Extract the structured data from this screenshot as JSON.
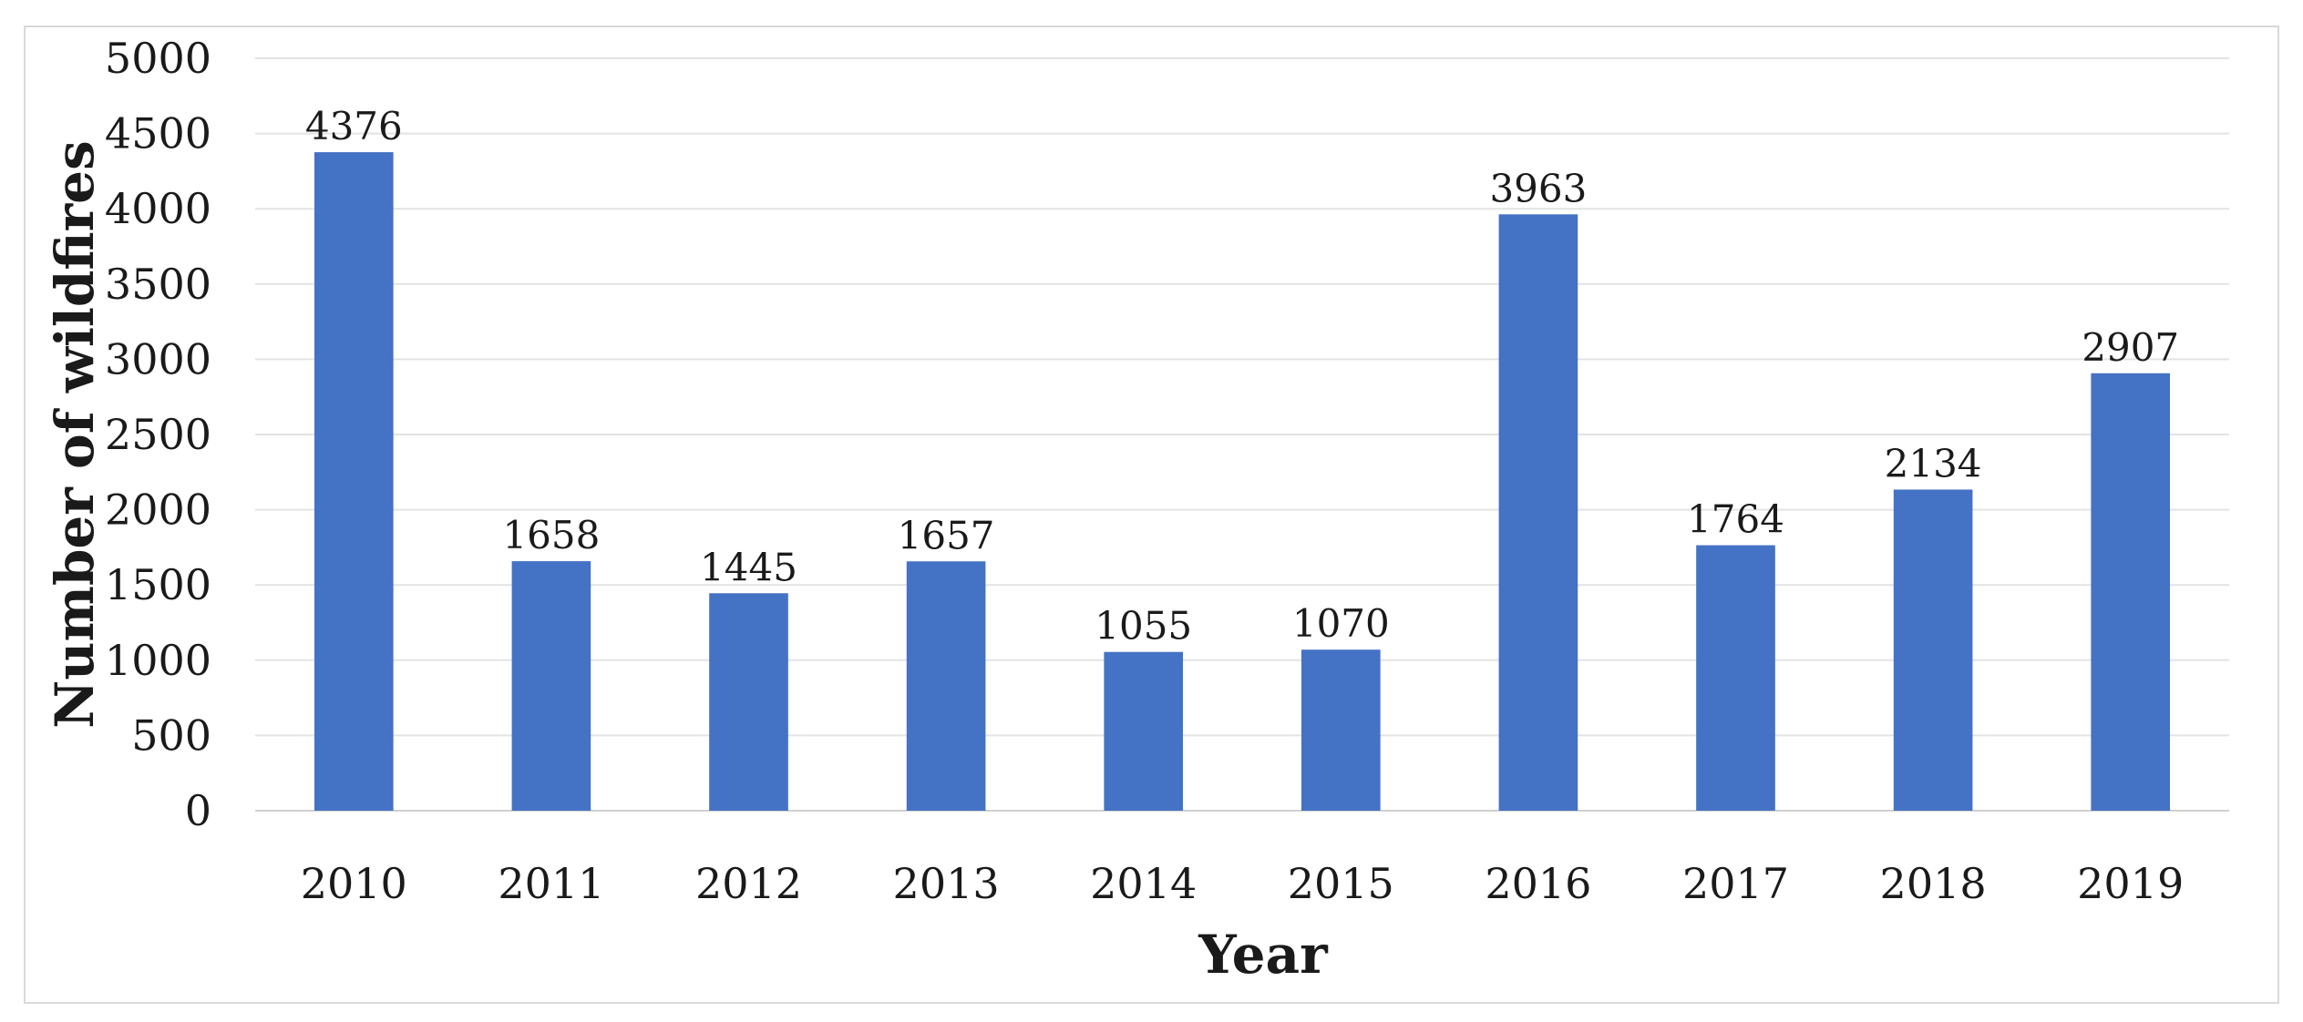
{
  "chart_data": {
    "type": "bar",
    "title": "",
    "xlabel": "Year",
    "ylabel": "Number of wildfires",
    "categories": [
      "2010",
      "2011",
      "2012",
      "2013",
      "2014",
      "2015",
      "2016",
      "2017",
      "2018",
      "2019"
    ],
    "values": [
      4376,
      1658,
      1445,
      1657,
      1055,
      1070,
      3963,
      1764,
      2134,
      2907
    ],
    "data_labels": [
      "4376",
      "1658",
      "1445",
      "1657",
      "1055",
      "1070",
      "3963",
      "1764",
      "2134",
      "2907"
    ],
    "yticks": [
      0,
      500,
      1000,
      1500,
      2000,
      2500,
      3000,
      3500,
      4000,
      4500,
      5000
    ],
    "ytick_labels": [
      "0",
      "500",
      "1000",
      "1500",
      "2000",
      "2500",
      "3000",
      "3500",
      "4000",
      "4500",
      "5000"
    ],
    "ylim": [
      0,
      5000
    ],
    "grid": true,
    "legend": "none",
    "bar_color": "#4472C4"
  }
}
